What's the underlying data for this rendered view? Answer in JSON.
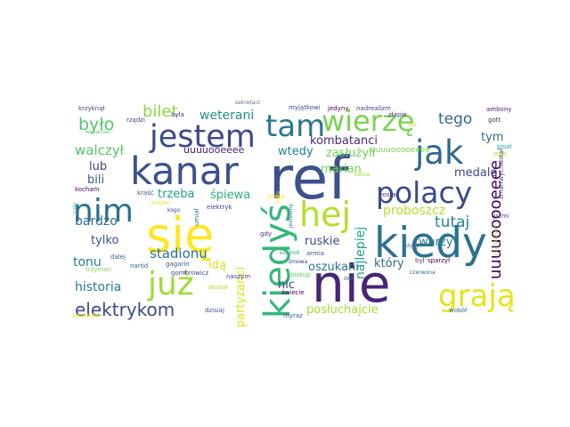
{
  "words": [
    {
      "text": "ref",
      "color": "#3b528b"
    },
    {
      "text": "kanar",
      "color": "#3b528b"
    },
    {
      "text": "się",
      "color": "#fde725"
    },
    {
      "text": "nie",
      "color": "#482576"
    },
    {
      "text": "kiedy",
      "color": "#2c728e"
    },
    {
      "text": "jestem",
      "color": "#3e4989"
    },
    {
      "text": "tam",
      "color": "#2a788e"
    },
    {
      "text": "wierzę",
      "color": "#7ad151"
    },
    {
      "text": "jak",
      "color": "#31688e"
    },
    {
      "text": "polacy",
      "color": "#3e4989"
    },
    {
      "text": "nim",
      "color": "#2c728e"
    },
    {
      "text": "hej",
      "color": "#b5de2b"
    },
    {
      "text": "już",
      "color": "#a0da39"
    },
    {
      "text": "kiedyś",
      "color": "#35b779"
    },
    {
      "text": "grają",
      "color": "#e6e419"
    },
    {
      "text": "elektrykom",
      "color": "#3e4989"
    },
    {
      "text": "uuuuooooeeee",
      "color": "#440154"
    },
    {
      "text": "uuuuooeeee",
      "color": "#481f70"
    },
    {
      "text": "było",
      "color": "#54c568"
    },
    {
      "text": "bilet",
      "color": "#90d743"
    },
    {
      "text": "weterani",
      "color": "#21918c"
    },
    {
      "text": "uuuuooooeeee",
      "color": "#7ad151"
    },
    {
      "text": "tego",
      "color": "#31688e"
    },
    {
      "text": "walczył",
      "color": "#54c568"
    },
    {
      "text": "kombatanci",
      "color": "#482878"
    },
    {
      "text": "wtedy",
      "color": "#26828e"
    },
    {
      "text": "zasłużyli",
      "color": "#6ece58"
    },
    {
      "text": "tym",
      "color": "#31688e"
    },
    {
      "text": "lub",
      "color": "#404688"
    },
    {
      "text": "medale",
      "color": "#414487"
    },
    {
      "text": "bili",
      "color": "#38588c"
    },
    {
      "text": "marian",
      "color": "#7ad151"
    },
    {
      "text": "trzeba",
      "color": "#1f9f88"
    },
    {
      "text": "śpiewa",
      "color": "#2db27d"
    },
    {
      "text": "proboszcz",
      "color": "#b5de2b"
    },
    {
      "text": "bardzo",
      "color": "#2e6d8e"
    },
    {
      "text": "tutaj",
      "color": "#24878e"
    },
    {
      "text": "najlepiej",
      "color": "#1fa187"
    },
    {
      "text": "tylko",
      "color": "#3b528b"
    },
    {
      "text": "stadionu",
      "color": "#2d708e"
    },
    {
      "text": "ruskie",
      "color": "#404688"
    },
    {
      "text": "twarzy",
      "color": "#297a8e"
    },
    {
      "text": "tonu",
      "color": "#297b8e"
    },
    {
      "text": "idą",
      "color": "#d2e21b"
    },
    {
      "text": "oszukani",
      "color": "#2c738e"
    },
    {
      "text": "który",
      "color": "#2f6c8e"
    },
    {
      "text": "historia",
      "color": "#2a788e"
    },
    {
      "text": "partyzanci",
      "color": "#dde318"
    },
    {
      "text": "nic",
      "color": "#404688"
    },
    {
      "text": "posłuchajcie",
      "color": "#a8db34"
    },
    {
      "text": "krzyknął",
      "color": "#433e85"
    },
    {
      "text": "była",
      "color": "#463480"
    },
    {
      "text": "myjątkowi",
      "color": "#3e4989"
    },
    {
      "text": "jedyny",
      "color": "#440154"
    },
    {
      "text": "nadrealizm",
      "color": "#433e85"
    },
    {
      "text": "ambony",
      "color": "#482071"
    },
    {
      "text": "rządzi",
      "color": "#3e4989"
    },
    {
      "text": "sekretarz",
      "color": "#6c6c8c"
    },
    {
      "text": "złapie",
      "color": "#46327e"
    },
    {
      "text": "too",
      "color": "#b5de2b"
    },
    {
      "text": "gott",
      "color": "#482576"
    },
    {
      "text": "wspaniali",
      "color": "#5ec962"
    },
    {
      "text": "pisał",
      "color": "#20a386"
    },
    {
      "text": "jego",
      "color": "#c0df25"
    },
    {
      "text": "zmartwychwstał",
      "color": "#3e4a89"
    },
    {
      "text": "kocham",
      "color": "#440154"
    },
    {
      "text": "kraść",
      "color": "#3b528b"
    },
    {
      "text": "milości",
      "color": "#dde318"
    },
    {
      "text": "elektryk",
      "color": "#424186"
    },
    {
      "text": "kogo",
      "color": "#404688"
    },
    {
      "text": "umiał",
      "color": "#2c728e"
    },
    {
      "text": "karo",
      "color": "#fde725"
    },
    {
      "text": "został",
      "color": "#472d7b"
    },
    {
      "text": "kibice",
      "color": "#a0da39"
    },
    {
      "text": "grzmi",
      "color": "#3b528b"
    },
    {
      "text": "cały",
      "color": "#29af7f"
    },
    {
      "text": "odznaczony",
      "color": "#a0da39"
    },
    {
      "text": "jesteśmy",
      "color": "#2c728e"
    },
    {
      "text": "kontroli",
      "color": "#1f9e89"
    },
    {
      "text": "gdy",
      "color": "#46327e"
    },
    {
      "text": "trzyman",
      "color": "#7ad151"
    },
    {
      "text": "dalej",
      "color": "#3b528b"
    },
    {
      "text": "gagarin",
      "color": "#3b528b"
    },
    {
      "text": "naród",
      "color": "#31688e"
    },
    {
      "text": "był",
      "color": "#404688"
    },
    {
      "text": "sparzył",
      "color": "#440154"
    },
    {
      "text": "dyby",
      "color": "#6d6d8d"
    },
    {
      "text": "zmowa",
      "color": "#46327e"
    },
    {
      "text": "armia",
      "color": "#3b528b"
    },
    {
      "text": "gombrowicz",
      "color": "#3e4989"
    },
    {
      "text": "naszym",
      "color": "#433e85"
    },
    {
      "text": "biskup",
      "color": "#5ec962"
    },
    {
      "text": "oni",
      "color": "#2a788e"
    },
    {
      "text": "czerwona",
      "color": "#31688e"
    },
    {
      "text": "dostał",
      "color": "#b5de2b"
    },
    {
      "text": "praca",
      "color": "#fde725"
    },
    {
      "text": "świecie",
      "color": "#440154"
    },
    {
      "text": "kontroler",
      "color": "#e5e419"
    },
    {
      "text": "dzisiaj",
      "color": "#3b528b"
    },
    {
      "text": "myraz",
      "color": "#3b528b"
    },
    {
      "text": "wokół",
      "color": "#31688e"
    }
  ]
}
